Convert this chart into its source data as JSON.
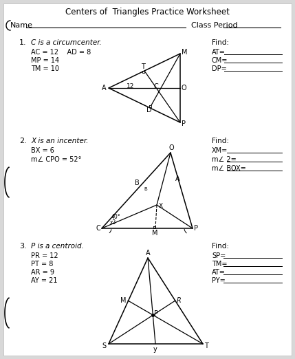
{
  "title": "Centers of  Triangles Practice Worksheet",
  "bg_outer": "#d8d8d8",
  "bg_page": "#ffffff",
  "name_label": "Name",
  "class_period_label": "Class Period",
  "p1_label": "C is a circumcenter.",
  "p1_given": [
    "AC = 12    AD = 8",
    "MP = 14",
    "TM = 10"
  ],
  "p1_find": [
    "AT=",
    "CM=",
    "DP="
  ],
  "p2_label": "X is an incenter.",
  "p2_given": [
    "BX = 6",
    "m∠ CPO = 52°"
  ],
  "p2_find": [
    "XM=",
    "m∠ 2=",
    "m∠ BOX="
  ],
  "p3_label": "P is a centroid.",
  "p3_given": [
    "PR = 12",
    "PT = 8",
    "AR = 9",
    "AY = 21"
  ],
  "p3_find": [
    "SP=",
    "TM=",
    "AT=",
    "PY="
  ]
}
